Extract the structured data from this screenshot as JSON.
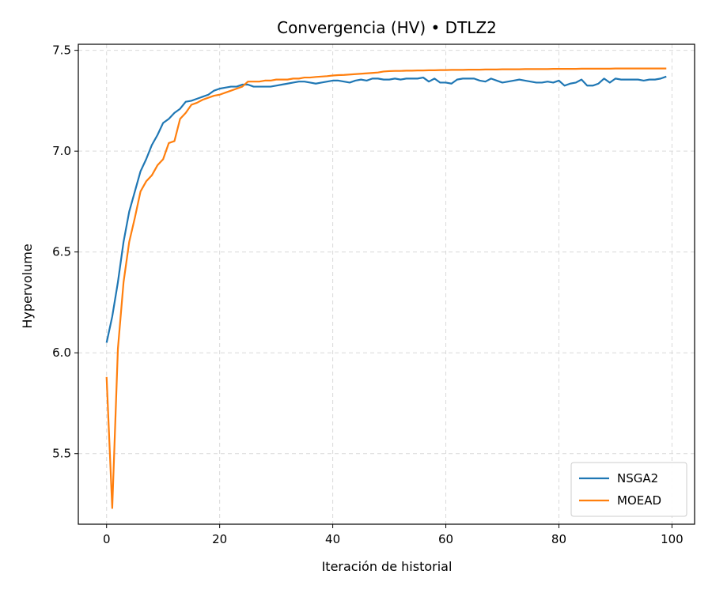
{
  "chart_data": {
    "type": "line",
    "title": "Convergencia (HV) • DTLZ2",
    "xlabel": "Iteración de historial",
    "ylabel": "Hypervolume",
    "xlim": [
      -5,
      104
    ],
    "ylim": [
      5.15,
      7.53
    ],
    "x_ticks": [
      0,
      20,
      40,
      60,
      80,
      100
    ],
    "x_tick_labels": [
      "0",
      "20",
      "40",
      "60",
      "80",
      "100"
    ],
    "y_ticks": [
      5.5,
      6.0,
      6.5,
      7.0,
      7.5
    ],
    "y_tick_labels": [
      "5.5",
      "6.0",
      "6.5",
      "7.0",
      "7.5"
    ],
    "grid": true,
    "legend_position": "bottom-right",
    "series": [
      {
        "name": "NSGA2",
        "color": "#1f77b4",
        "x": [
          0,
          1,
          2,
          3,
          4,
          5,
          6,
          7,
          8,
          9,
          10,
          11,
          12,
          13,
          14,
          15,
          16,
          17,
          18,
          19,
          20,
          21,
          22,
          23,
          24,
          25,
          26,
          27,
          28,
          29,
          30,
          31,
          32,
          33,
          34,
          35,
          36,
          37,
          38,
          39,
          40,
          41,
          42,
          43,
          44,
          45,
          46,
          47,
          48,
          49,
          50,
          51,
          52,
          53,
          54,
          55,
          56,
          57,
          58,
          59,
          60,
          61,
          62,
          63,
          64,
          65,
          66,
          67,
          68,
          69,
          70,
          71,
          72,
          73,
          74,
          75,
          76,
          77,
          78,
          79,
          80,
          81,
          82,
          83,
          84,
          85,
          86,
          87,
          88,
          89,
          90,
          91,
          92,
          93,
          94,
          95,
          96,
          97,
          98,
          99
        ],
        "values": [
          6.05,
          6.18,
          6.35,
          6.55,
          6.7,
          6.8,
          6.9,
          6.96,
          7.03,
          7.08,
          7.14,
          7.16,
          7.19,
          7.21,
          7.245,
          7.25,
          7.26,
          7.27,
          7.28,
          7.3,
          7.31,
          7.315,
          7.32,
          7.32,
          7.33,
          7.33,
          7.32,
          7.32,
          7.32,
          7.32,
          7.325,
          7.33,
          7.335,
          7.34,
          7.345,
          7.345,
          7.34,
          7.335,
          7.34,
          7.345,
          7.35,
          7.35,
          7.345,
          7.34,
          7.35,
          7.355,
          7.35,
          7.36,
          7.36,
          7.355,
          7.355,
          7.36,
          7.355,
          7.36,
          7.36,
          7.36,
          7.365,
          7.345,
          7.36,
          7.34,
          7.34,
          7.335,
          7.355,
          7.36,
          7.36,
          7.36,
          7.35,
          7.345,
          7.36,
          7.35,
          7.34,
          7.345,
          7.35,
          7.355,
          7.35,
          7.345,
          7.34,
          7.34,
          7.345,
          7.34,
          7.35,
          7.325,
          7.335,
          7.34,
          7.355,
          7.325,
          7.325,
          7.335,
          7.36,
          7.34,
          7.36,
          7.355,
          7.355,
          7.355,
          7.355,
          7.35,
          7.355,
          7.355,
          7.36,
          7.37
        ]
      },
      {
        "name": "MOEAD",
        "color": "#ff7f0e",
        "x": [
          0,
          1,
          2,
          3,
          4,
          5,
          6,
          7,
          8,
          9,
          10,
          11,
          12,
          13,
          14,
          15,
          16,
          17,
          18,
          19,
          20,
          21,
          22,
          23,
          24,
          25,
          26,
          27,
          28,
          29,
          30,
          31,
          32,
          33,
          34,
          35,
          36,
          37,
          38,
          39,
          40,
          41,
          42,
          43,
          44,
          45,
          46,
          47,
          48,
          49,
          50,
          51,
          52,
          53,
          54,
          55,
          56,
          57,
          58,
          59,
          60,
          61,
          62,
          63,
          64,
          65,
          66,
          67,
          68,
          69,
          70,
          71,
          72,
          73,
          74,
          75,
          76,
          77,
          78,
          79,
          80,
          81,
          82,
          83,
          84,
          85,
          86,
          87,
          88,
          89,
          90,
          91,
          92,
          93,
          94,
          95,
          96,
          97,
          98,
          99
        ],
        "values": [
          5.88,
          5.23,
          6.02,
          6.35,
          6.55,
          6.67,
          6.8,
          6.85,
          6.88,
          6.93,
          6.96,
          7.04,
          7.05,
          7.16,
          7.19,
          7.23,
          7.24,
          7.255,
          7.265,
          7.275,
          7.28,
          7.29,
          7.3,
          7.31,
          7.32,
          7.345,
          7.345,
          7.345,
          7.35,
          7.35,
          7.355,
          7.355,
          7.355,
          7.36,
          7.36,
          7.365,
          7.365,
          7.368,
          7.37,
          7.372,
          7.375,
          7.377,
          7.378,
          7.38,
          7.382,
          7.384,
          7.386,
          7.388,
          7.39,
          7.395,
          7.397,
          7.398,
          7.398,
          7.399,
          7.399,
          7.4,
          7.4,
          7.401,
          7.401,
          7.402,
          7.402,
          7.403,
          7.403,
          7.403,
          7.404,
          7.404,
          7.404,
          7.405,
          7.405,
          7.405,
          7.406,
          7.406,
          7.406,
          7.406,
          7.407,
          7.407,
          7.407,
          7.407,
          7.407,
          7.408,
          7.408,
          7.408,
          7.408,
          7.408,
          7.409,
          7.409,
          7.409,
          7.409,
          7.409,
          7.409,
          7.41,
          7.41,
          7.41,
          7.41,
          7.41,
          7.41,
          7.41,
          7.41,
          7.41,
          7.41
        ]
      }
    ]
  }
}
